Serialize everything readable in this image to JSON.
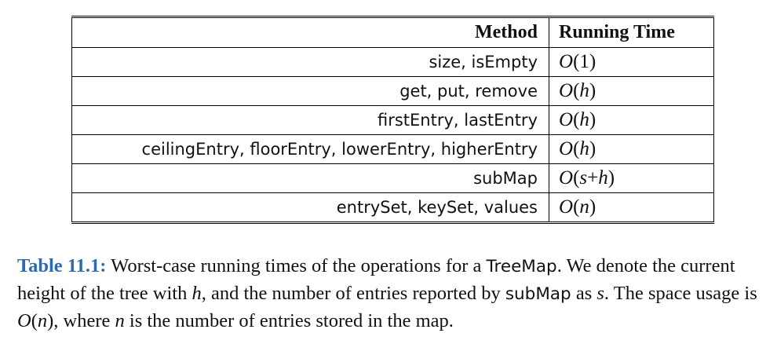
{
  "table": {
    "headers": {
      "method": "Method",
      "running_time": "Running Time"
    },
    "rows": [
      {
        "method": "size, isEmpty",
        "time": "O(1)"
      },
      {
        "method": "get, put, remove",
        "time": "O(h)"
      },
      {
        "method": "firstEntry, lastEntry",
        "time": "O(h)"
      },
      {
        "method": "ceilingEntry, floorEntry, lowerEntry, higherEntry",
        "time": "O(h)"
      },
      {
        "method": "subMap",
        "time": "O(s+h)"
      },
      {
        "method": "entrySet, keySet, values",
        "time": "O(n)"
      }
    ]
  },
  "caption": {
    "label": "Table 11.1:",
    "text_1": " Worst-case running times of the operations for a ",
    "class_name": "TreeMap",
    "text_2": ". We denote the current height of the tree with ",
    "var_h": "h",
    "text_3": ", and the number of entries reported by ",
    "method_name": "subMap",
    "text_4": " as ",
    "var_s": "s",
    "text_5": ". The space usage is ",
    "space_usage": "O(n)",
    "text_6": ", where ",
    "var_n": "n",
    "text_7": " is the number of entries stored in the map."
  },
  "colors": {
    "caption_label": "#2b6cb0"
  }
}
